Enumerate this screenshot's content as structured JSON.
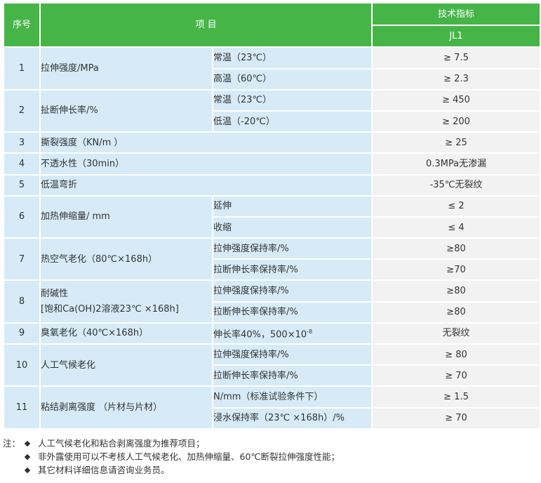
{
  "header": {
    "no": "序号",
    "item": "项  目",
    "spec": "技术指标",
    "grade": "JL1"
  },
  "rows": [
    {
      "no": "1",
      "item": "拉伸强度/MPa",
      "subs": [
        {
          "cond": "常温（23℃）",
          "val": "≥ 7.5"
        },
        {
          "cond": "高温（60℃）",
          "val": "≥ 2.3"
        }
      ]
    },
    {
      "no": "2",
      "item": "扯断伸长率/%",
      "subs": [
        {
          "cond": "常温（23℃）",
          "val": "≥ 450"
        },
        {
          "cond": "低温（-20℃）",
          "val": "≥ 200"
        }
      ]
    },
    {
      "no": "3",
      "item": "撕裂强度（KN/m ）",
      "val": "≥ 25"
    },
    {
      "no": "4",
      "item": "不透水性（30min）",
      "val": "0.3MPa无渗漏"
    },
    {
      "no": "5",
      "item": "低温弯折",
      "val": "-35℃无裂纹"
    },
    {
      "no": "6",
      "item": "加热伸缩量/ mm",
      "subs": [
        {
          "cond": "延伸",
          "val": "≤ 2"
        },
        {
          "cond": "收缩",
          "val": "≤ 4"
        }
      ]
    },
    {
      "no": "7",
      "item": "热空气老化（80℃×168h）",
      "subs": [
        {
          "cond": "拉伸强度保持率/%",
          "val": "≥80"
        },
        {
          "cond": "拉断伸长率保持率/%",
          "val": "≥70"
        }
      ]
    },
    {
      "no": "8",
      "item": "耐碱性",
      "item2": "[饱和Ca(OH)2溶液23℃ ×168h]",
      "subs": [
        {
          "cond": "拉伸强度保持率/%",
          "val": "≥80"
        },
        {
          "cond": "拉断伸长率保持率/%",
          "val": "≥80"
        }
      ]
    },
    {
      "no": "9",
      "item": "臭氧老化（40℃×168h）",
      "cond": "伸长率40%，500×10",
      "sup": "-8",
      "val": "无裂纹"
    },
    {
      "no": "10",
      "item": "人工气候老化",
      "subs": [
        {
          "cond": "拉伸强度保持率/%",
          "val": "≥ 80"
        },
        {
          "cond": "拉断伸长率保持率/%",
          "val": "≥ 70"
        }
      ]
    },
    {
      "no": "11",
      "item": "粘结剥离强度 （片材与片材）",
      "subs": [
        {
          "cond": "N/mm（标准试验条件下）",
          "val": "≥ 1.5"
        },
        {
          "cond": "浸水保持率（23℃ ×168h）/%",
          "val": "≥ 70"
        }
      ]
    }
  ],
  "notes": {
    "lead": "注：",
    "items": [
      "人工气候老化和粘合剥离强度为推荐项目；",
      "非外露使用可以不考核人工气候老化、加热伸缩量、60℃断裂拉伸强度性能；",
      "其它材料详细信息请咨询业务员。"
    ]
  },
  "colors": {
    "header_green": "#46b548",
    "cell_blue": "#d6ebf7",
    "cell_gray": "#f2f2f2"
  }
}
